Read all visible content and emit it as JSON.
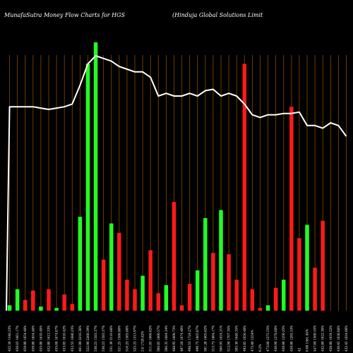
{
  "chart_data": {
    "type": "bar",
    "title": "MunafaSutra  Money Flow  Charts for HGS",
    "subtitle": "(Hinduja  Global Solutions Limit",
    "colors": {
      "background": "#000000",
      "grid": "#8a4a00",
      "up": "#22ff22",
      "down": "#ff1a1a",
      "line": "#ffffff"
    },
    "grid": true,
    "ylim": [
      0,
      100
    ],
    "categories": [
      "455.30 1548.23%",
      "450.85 1661.17%",
      "459.00 1654.48%",
      "459.00 1654.48%",
      "455.00 1610.48%",
      "452.00 1612.33%",
      "455.00 1674.07%",
      "453.05 1610.42%",
      "453.55 1680.23%",
      "461.00 2216.36%",
      "522.00 2260.59%",
      "530.25 1583.37%",
      "530.25 1583.37%",
      "531.30 2116.88%",
      "521.25 1586.80%",
      "516.25 1565.80%",
      "525.25 1513.97%",
      "2.0 1720.82%",
      "511.85 1666.82%",
      "506.85 1660.57%",
      "506.35 1684.34%",
      "488.95 1660.73%",
      "497.20 1674.40%",
      "498.55 1724.27%",
      "490.75 1665.07%",
      "501.20 1605.82%",
      "515.75 1604.17%",
      "506.95 1624.21%",
      "512.90 1707.35%",
      "505.30 1648.35%",
      "492.05 1656.48%",
      "475.00 1554%",
      "0.2%",
      "473.00 1275.55%",
      "430.90 1278.68%",
      "450.80 1250.25%",
      "450.00 1282.53%",
      "42",
      "0.00 1561.84%",
      "447.80 1560.55%",
      "442.00 1622.30%",
      "450.00 1634.52%",
      "430.65 1636.88%",
      "432.45 1624.00%"
    ],
    "values": [
      2,
      8,
      4,
      7.5,
      1.5,
      8,
      1,
      6,
      2.5,
      35,
      92,
      100,
      19,
      32.5,
      29,
      11.5,
      8,
      13,
      22.5,
      6.5,
      9.5,
      40.5,
      2,
      10,
      15,
      34.5,
      21.5,
      37.5,
      21,
      11.5,
      92,
      8,
      1,
      2,
      8.5,
      11.5,
      76,
      27,
      32,
      16,
      33.5,
      0,
      0,
      0
    ],
    "directions": [
      "up",
      "up",
      "down",
      "down",
      "up",
      "down",
      "up",
      "down",
      "down",
      "up",
      "up",
      "up",
      "down",
      "up",
      "down",
      "down",
      "down",
      "up",
      "down",
      "down",
      "up",
      "down",
      "down",
      "down",
      "up",
      "up",
      "down",
      "up",
      "down",
      "down",
      "down",
      "down",
      "down",
      "up",
      "down",
      "up",
      "down",
      "down",
      "up",
      "down",
      "down",
      "up",
      "up",
      "up"
    ],
    "line_values": [
      76,
      76,
      76,
      76,
      75.5,
      75,
      75.5,
      76,
      77,
      84,
      92,
      95,
      94,
      93,
      91,
      90,
      89,
      89,
      87,
      80,
      81,
      80,
      80,
      81,
      80,
      82,
      82.5,
      80,
      81,
      80,
      77,
      73,
      72,
      73,
      73,
      73.5,
      73.5,
      74,
      69,
      69,
      68,
      70,
      69,
      65
    ]
  }
}
